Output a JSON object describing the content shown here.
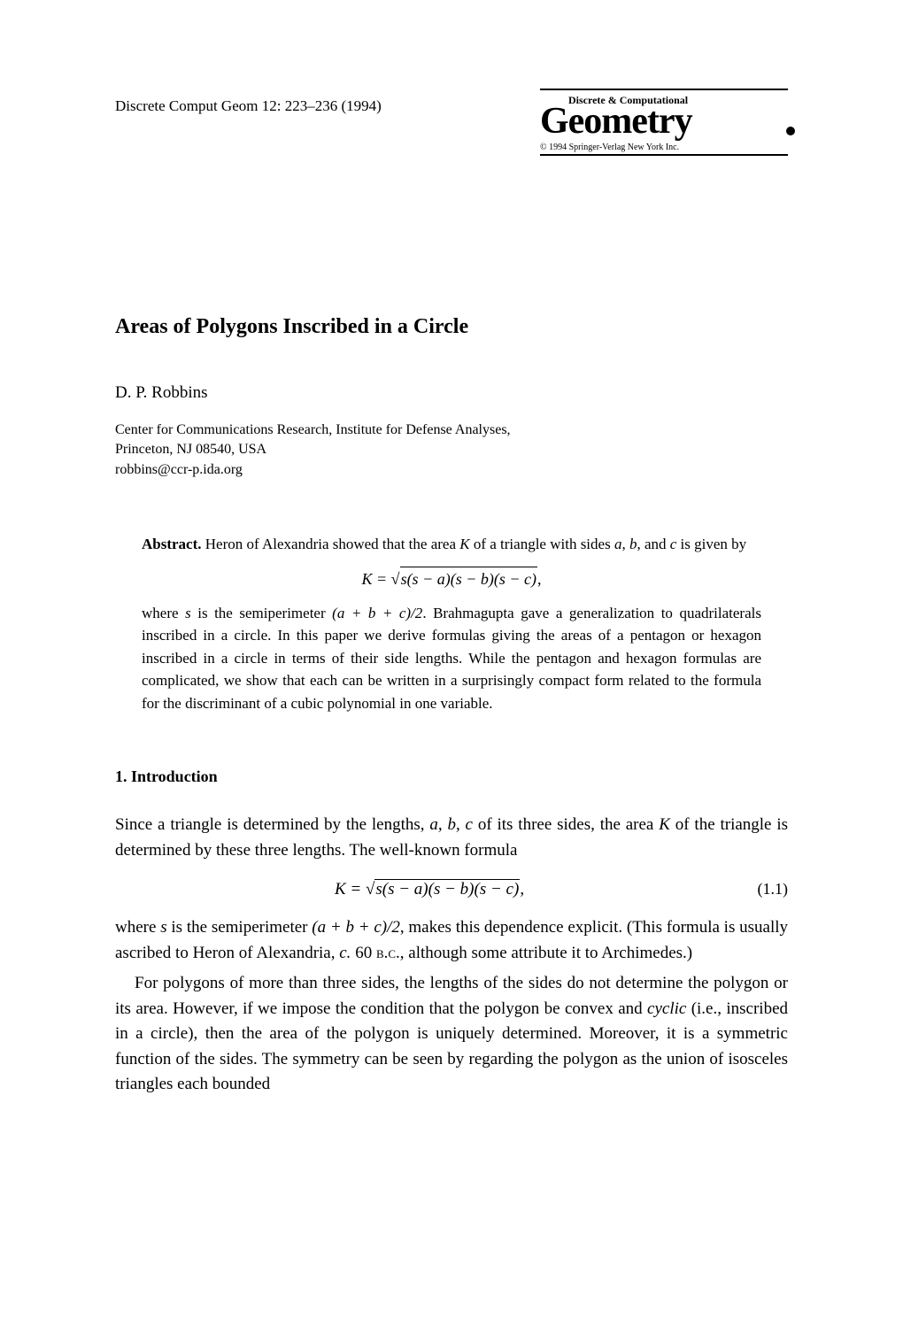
{
  "header": {
    "journal_ref": "Discrete Comput Geom 12: 223–236 (1994)",
    "logo_top": "Discrete & Computational",
    "logo_main": "Geometry",
    "copyright": "© 1994 Springer-Verlag New York Inc."
  },
  "article": {
    "title": "Areas of Polygons Inscribed in a Circle",
    "author": "D. P. Robbins",
    "affiliation_line1": "Center for Communications Research, Institute for Defense Analyses,",
    "affiliation_line2": "Princeton, NJ 08540, USA",
    "affiliation_line3": "robbins@ccr-p.ida.org"
  },
  "abstract": {
    "label": "Abstract.",
    "text1": "Heron of Alexandria showed that the area ",
    "var_K": "K",
    "text2": " of a triangle with sides ",
    "var_a": "a",
    "text3": ", ",
    "var_b": "b",
    "text4": ", and ",
    "var_c": "c",
    "text5": " is given by",
    "formula1": "K = ",
    "formula1_sqrt": "s(s − a)(s − b)(s − c)",
    "formula1_end": ",",
    "text6": "where ",
    "var_s": "s",
    "text7": " is the semiperimeter ",
    "semi": "(a + b + c)/2",
    "text8": ". Brahmagupta gave a generalization to quadrilaterals inscribed in a circle. In this paper we derive formulas giving the areas of a pentagon or hexagon inscribed in a circle in terms of their side lengths. While the pentagon and hexagon formulas are complicated, we show that each can be written in a surprisingly compact form related to the formula for the discriminant of a cubic polynomial in one variable."
  },
  "section1": {
    "heading": "1.   Introduction",
    "p1_a": "Since a triangle is determined by the lengths, ",
    "p1_abc": "a, b, c",
    "p1_b": " of its three sides, the area ",
    "p1_K": "K",
    "p1_c": " of the triangle is determined by these three lengths. The well-known formula",
    "formula_lhs": "K = ",
    "formula_sqrt": "s(s − a)(s − b)(s − c)",
    "formula_end": ",",
    "eq_num": "(1.1)",
    "p2_a": "where ",
    "p2_s": "s",
    "p2_b": " is the semiperimeter ",
    "p2_semi": "(a + b + c)/2",
    "p2_c": ", makes this dependence explicit. (This formula is usually ascribed to Heron of Alexandria, ",
    "p2_circa": "c.",
    "p2_d": " 60 ",
    "p2_bc": "b.c.",
    "p2_e": ", although some attribute it to Archimedes.)",
    "p3_a": "For polygons of more than three sides, the lengths of the sides do not determine the polygon or its area. However, if we impose the condition that the polygon be convex and ",
    "p3_cyclic": "cyclic",
    "p3_b": " (i.e., inscribed in a circle), then the area of the polygon is uniquely determined. Moreover, it is a symmetric function of the sides. The symmetry can be seen by regarding the polygon as the union of isosceles triangles each bounded"
  }
}
